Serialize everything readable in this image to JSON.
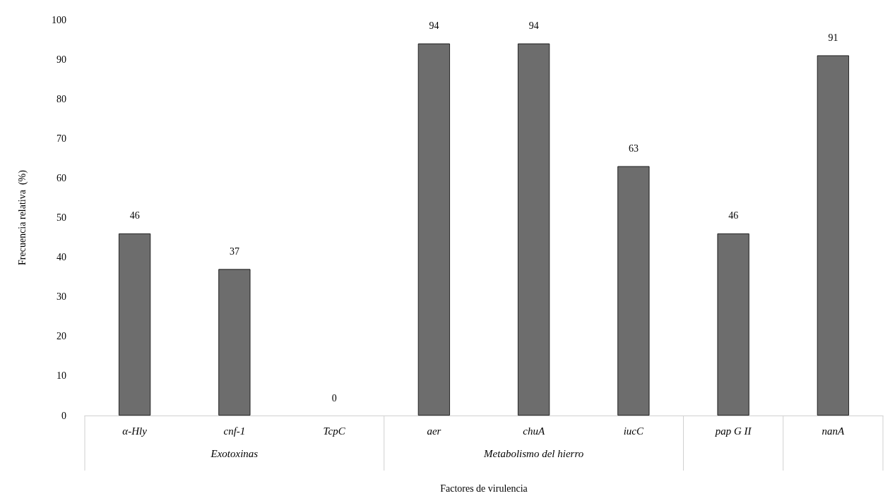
{
  "chart_data": {
    "type": "bar",
    "xlabel": "Factores de virulencia",
    "ylabel": "Frecuencia relativa  (%)",
    "categories": [
      "α-Hly",
      "cnf-1",
      "TcpC",
      "aer",
      "chuA",
      "iucC",
      "pap G II",
      "nanA"
    ],
    "values": [
      46,
      37,
      0,
      94,
      94,
      63,
      46,
      91
    ],
    "color": "#6d6d6d",
    "ylim": [
      0,
      100
    ],
    "yticks": [
      0,
      10,
      20,
      30,
      40,
      50,
      60,
      70,
      80,
      90,
      100
    ],
    "grid": false,
    "data_labels": true,
    "annotations": [
      "Exotoxinas",
      "Metabolismo del hierro"
    ]
  }
}
